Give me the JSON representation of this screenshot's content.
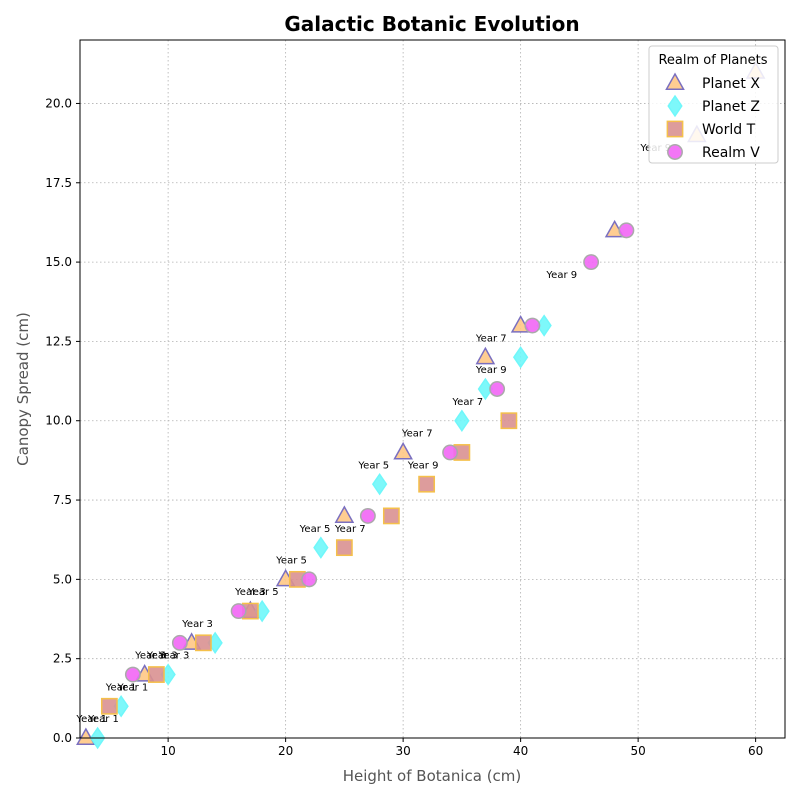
{
  "chart_data": {
    "type": "scatter",
    "title": "Galactic Botanic Evolution",
    "xlabel": "Height of Botanica (cm)",
    "ylabel": "Canopy Spread (cm)",
    "xlim": [
      2.5,
      62.5
    ],
    "ylim": [
      0,
      22
    ],
    "xticks": [
      10,
      20,
      30,
      40,
      50,
      60
    ],
    "yticks": [
      0.0,
      2.5,
      5.0,
      7.5,
      10.0,
      12.5,
      15.0,
      17.5,
      20.0
    ],
    "xtick_labels": [
      "10",
      "20",
      "30",
      "40",
      "50",
      "60"
    ],
    "ytick_labels": [
      "0.0",
      "2.5",
      "5.0",
      "7.5",
      "10.0",
      "12.5",
      "15.0",
      "17.5",
      "20.0"
    ],
    "grid": true,
    "legend": {
      "title": "Realm of Planets",
      "placement": "top-right"
    },
    "series": [
      {
        "name": "Planet X",
        "marker": "triangle",
        "fill": "#ffc885",
        "edge": "#7a6fc0",
        "points": [
          [
            3,
            0
          ],
          [
            8,
            2
          ],
          [
            12,
            3
          ],
          [
            17,
            4
          ],
          [
            20,
            5
          ],
          [
            25,
            7
          ],
          [
            30,
            9
          ],
          [
            37,
            12
          ],
          [
            40,
            13
          ],
          [
            48,
            16
          ],
          [
            55,
            19
          ],
          [
            60,
            21
          ]
        ]
      },
      {
        "name": "Planet Z",
        "marker": "diamond",
        "fill": "#6ff7fa",
        "edge": "#6ff7fa",
        "points": [
          [
            4,
            0
          ],
          [
            6,
            1
          ],
          [
            10,
            2
          ],
          [
            14,
            3
          ],
          [
            18,
            4
          ],
          [
            23,
            6
          ],
          [
            28,
            8
          ],
          [
            35,
            10
          ],
          [
            37,
            11
          ],
          [
            40,
            12
          ],
          [
            42,
            13
          ]
        ]
      },
      {
        "name": "World T",
        "marker": "square",
        "fill": "#d99191",
        "edge": "#f5c04a",
        "points": [
          [
            5,
            1
          ],
          [
            9,
            2
          ],
          [
            13,
            3
          ],
          [
            17,
            4
          ],
          [
            21,
            5
          ],
          [
            25,
            6
          ],
          [
            29,
            7
          ],
          [
            32,
            8
          ],
          [
            35,
            9
          ],
          [
            39,
            10
          ]
        ]
      },
      {
        "name": "Realm V",
        "marker": "circle",
        "fill": "#f266f5",
        "edge": "#aaaaaa",
        "points": [
          [
            7,
            2
          ],
          [
            11,
            3
          ],
          [
            16,
            4
          ],
          [
            22,
            5
          ],
          [
            27,
            7
          ],
          [
            34,
            9
          ],
          [
            38,
            11
          ],
          [
            41,
            13
          ],
          [
            46,
            15
          ],
          [
            49,
            16
          ]
        ]
      }
    ],
    "annotations": [
      {
        "text": "Year 1",
        "x": 3.5,
        "y": 0.5
      },
      {
        "text": "Year 1",
        "x": 4.5,
        "y": 0.5
      },
      {
        "text": "Year 1",
        "x": 6,
        "y": 1.5
      },
      {
        "text": "Year 1",
        "x": 7,
        "y": 1.5
      },
      {
        "text": "Year 3",
        "x": 8.5,
        "y": 2.5
      },
      {
        "text": "Year 3",
        "x": 9.5,
        "y": 2.5
      },
      {
        "text": "Year 3",
        "x": 10.5,
        "y": 2.5
      },
      {
        "text": "Year 3",
        "x": 12.5,
        "y": 3.5
      },
      {
        "text": "Year 3",
        "x": 17,
        "y": 4.5
      },
      {
        "text": "Year 5",
        "x": 18.1,
        "y": 4.5
      },
      {
        "text": "Year 5",
        "x": 20.5,
        "y": 5.5
      },
      {
        "text": "Year 5",
        "x": 22.5,
        "y": 6.5
      },
      {
        "text": "Year 7",
        "x": 25.5,
        "y": 6.5
      },
      {
        "text": "Year 5",
        "x": 27.5,
        "y": 8.5
      },
      {
        "text": "Year 9",
        "x": 31.7,
        "y": 8.5
      },
      {
        "text": "Year 7",
        "x": 31.2,
        "y": 9.5
      },
      {
        "text": "Year 7",
        "x": 35.5,
        "y": 10.5
      },
      {
        "text": "Year 9",
        "x": 37.5,
        "y": 11.5
      },
      {
        "text": "Year 7",
        "x": 37.5,
        "y": 12.5
      },
      {
        "text": "Year 9",
        "x": 43.5,
        "y": 14.5
      },
      {
        "text": "Year 9",
        "x": 51.5,
        "y": 18.5
      }
    ]
  }
}
